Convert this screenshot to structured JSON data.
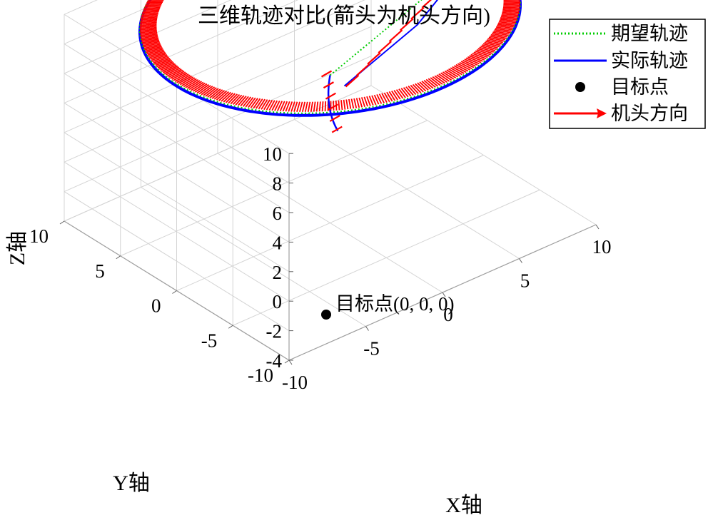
{
  "chart_data": {
    "type": "line3d",
    "title": "三维轨迹对比(箭头为机头方向)",
    "xlabel": "X轴",
    "ylabel": "Y轴",
    "zlabel": "Z轴",
    "xlim": [
      -10,
      10
    ],
    "ylim": [
      -10,
      10
    ],
    "zlim": [
      -4,
      10
    ],
    "x_ticks": [
      "-10",
      "-5",
      "0",
      "5",
      "10"
    ],
    "y_ticks": [
      "-10",
      "-5",
      "0",
      "5",
      "10"
    ],
    "z_ticks": [
      "-4",
      "-2",
      "0",
      "2",
      "4",
      "6",
      "8",
      "10"
    ],
    "grid": true,
    "legend_position": "top-right",
    "legend": [
      {
        "label": "期望轨迹",
        "style": "dotted",
        "color": "#00cc00"
      },
      {
        "label": "实际轨迹",
        "style": "solid",
        "color": "#0000ff"
      },
      {
        "label": "目标点",
        "style": "marker",
        "color": "#000000"
      },
      {
        "label": "机头方向",
        "style": "arrow",
        "color": "#ff0000"
      }
    ],
    "desired_trajectory": {
      "shape": "circle",
      "radius": 10,
      "z": 10,
      "entry_from": [
        0,
        0,
        6
      ],
      "entry_to": [
        10,
        0,
        10
      ]
    },
    "actual_trajectory": {
      "shape": "circle",
      "radius": 10,
      "z": 10,
      "start": [
        0,
        0,
        6
      ],
      "dip_to": [
        0.5,
        0,
        2
      ]
    },
    "target_point": {
      "x": 0,
      "y": 0,
      "z": 0,
      "label": "目标点(0, 0, 0)"
    }
  },
  "colors": {
    "desired": "#00cc00",
    "actual": "#0000ff",
    "heading": "#ff0000",
    "target": "#000000",
    "grid": "#d4d4d4"
  }
}
